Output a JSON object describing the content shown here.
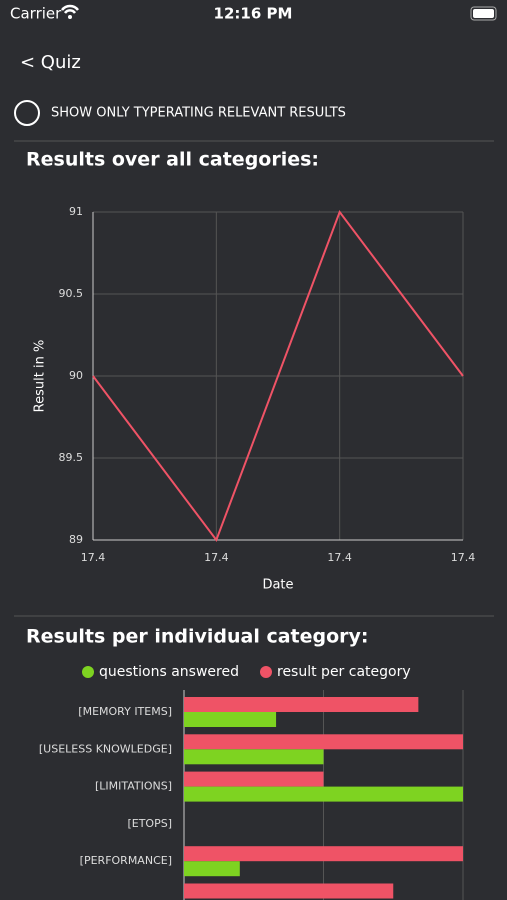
{
  "status_bar": {
    "carrier": "Carrier",
    "time": "12:16 PM"
  },
  "nav": {
    "back": "< Quiz"
  },
  "toggle": {
    "label": "SHOW ONLY TYPERATING RELEVANT RESULTS"
  },
  "chart_data": [
    {
      "type": "line",
      "title": "Results over all categories:",
      "x_label": "Date",
      "y_label": "Result in %",
      "categories": [
        "17.4",
        "17.4",
        "17.4",
        "17.4"
      ],
      "series": [
        {
          "color": "#ef5366",
          "values": [
            90,
            89,
            91,
            90
          ]
        }
      ],
      "ylim": [
        89,
        91
      ],
      "yticks": [
        89,
        89.5,
        90,
        90.5,
        91
      ],
      "grid": true
    },
    {
      "type": "hbar",
      "title": "Results per individual category:",
      "categories": [
        "[MEMORY ITEMS]",
        "[USELESS KNOWLEDGE]",
        "[LIMITATIONS]",
        "[ETOPS]",
        "[PERFORMANCE]",
        null
      ],
      "series": [
        {
          "name": "questions answered",
          "color": "#7ed321",
          "values": [
            33,
            50,
            100,
            0,
            20,
            null
          ]
        },
        {
          "name": "result per category",
          "color": "#ef5366",
          "values": [
            84,
            100,
            50,
            0,
            100,
            75
          ]
        }
      ],
      "xlim": [
        0,
        100
      ],
      "xticks": [
        0,
        50,
        100
      ],
      "grid": true
    }
  ]
}
